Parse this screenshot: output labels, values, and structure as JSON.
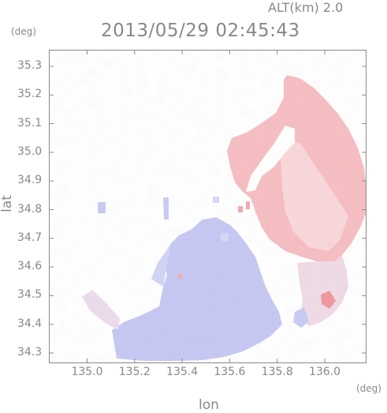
{
  "header": {
    "altitude": "ALT(km) 2.0",
    "timestamp": "2013/05/29 02:45:43"
  },
  "axes": {
    "y_unit": "(deg)",
    "x_unit": "(deg)",
    "ylabel": "lat",
    "xlabel": "lon",
    "yticks": [
      "35.3",
      "35.2",
      "35.1",
      "35.0",
      "34.9",
      "34.8",
      "34.7",
      "34.6",
      "34.5",
      "34.4",
      "34.3"
    ],
    "xticks": [
      "135.0",
      "135.2",
      "135.4",
      "135.6",
      "135.8",
      "136.0"
    ]
  },
  "colors": {
    "frame": "#8a8a8a",
    "receding": "#f4b9bd",
    "approaching": "#c3c5f2",
    "neutral": "#ffffff"
  }
}
